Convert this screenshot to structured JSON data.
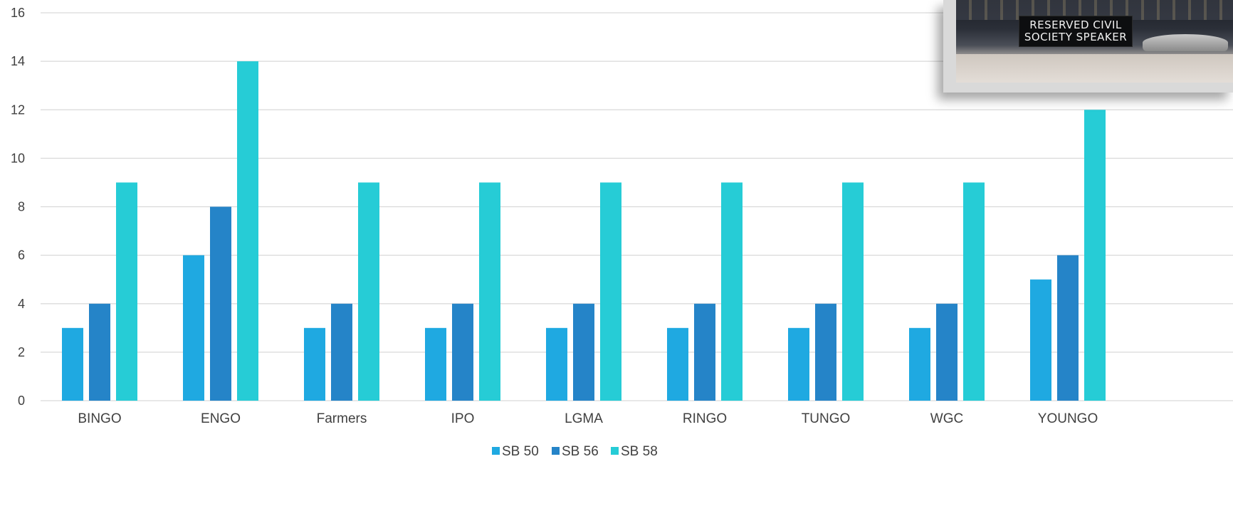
{
  "chart_data": {
    "type": "bar",
    "title": "",
    "xlabel": "",
    "ylabel": "",
    "ylim": [
      0,
      16
    ],
    "yticks": [
      0,
      2,
      4,
      6,
      8,
      10,
      12,
      14,
      16
    ],
    "grid": true,
    "legend_position": "bottom-center",
    "categories": [
      "BINGO",
      "ENGO",
      "Farmers",
      "IPO",
      "LGMA",
      "RINGO",
      "TUNGO",
      "WGC",
      "YOUNGO"
    ],
    "series": [
      {
        "name": "SB 50",
        "color": "#1fa9e1",
        "values": [
          3,
          6,
          3,
          3,
          3,
          3,
          3,
          3,
          5
        ]
      },
      {
        "name": "SB 56",
        "color": "#2584c8",
        "values": [
          4,
          8,
          4,
          4,
          4,
          4,
          4,
          4,
          6
        ]
      },
      {
        "name": "SB 58",
        "color": "#26ccd6",
        "values": [
          9,
          14,
          9,
          9,
          9,
          9,
          9,
          9,
          12
        ]
      }
    ]
  },
  "photo": {
    "sign_line1": "RESERVED CIVIL",
    "sign_line2": "SOCIETY SPEAKER"
  },
  "colors": {
    "gridline": "#d9d9d9",
    "axis_text": "#404040"
  }
}
